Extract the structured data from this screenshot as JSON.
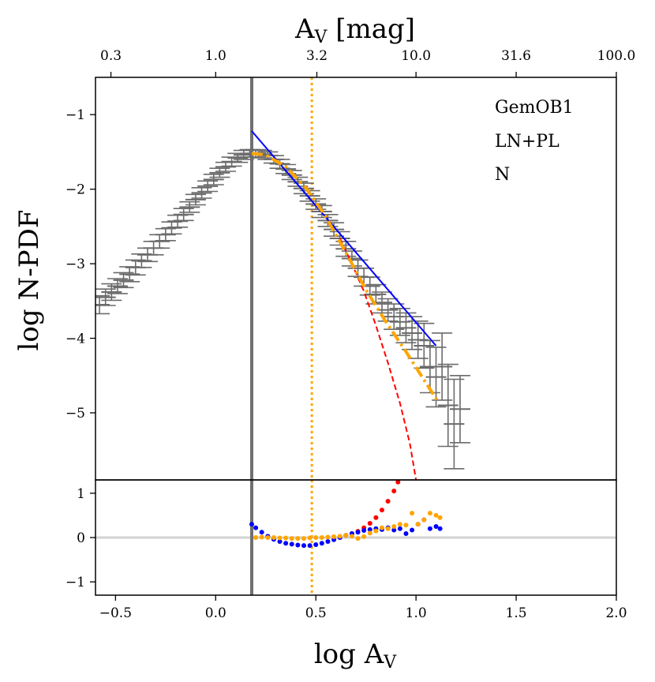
{
  "chart_data": {
    "type": "line",
    "panels": [
      "main",
      "residual"
    ],
    "x_axis": {
      "label_base": "log A",
      "label_sub": "V",
      "range": [
        -0.6,
        2.0
      ],
      "ticks": [
        -0.5,
        0.0,
        0.5,
        1.0,
        1.5,
        2.0
      ],
      "tick_labels": [
        "−0.5",
        "0.0",
        "0.5",
        "1.0",
        "1.5",
        "2.0"
      ]
    },
    "top_axis": {
      "label_base": "A",
      "label_sub": "V",
      "label_suffix": " [mag]",
      "tick_values_log": [
        -0.523,
        0.0,
        0.505,
        1.0,
        1.5,
        2.0
      ],
      "tick_labels": [
        "0.3",
        "1.0",
        "3.2",
        "10.0",
        "31.6",
        "100.0"
      ]
    },
    "y_axis_main": {
      "label": "log N-PDF",
      "range": [
        -5.9,
        -0.5
      ],
      "ticks": [
        -1,
        -2,
        -3,
        -4,
        -5
      ],
      "tick_labels": [
        "−1",
        "−2",
        "−3",
        "−4",
        "−5"
      ]
    },
    "y_axis_residual": {
      "range": [
        -1.3,
        1.3
      ],
      "ticks": [
        1,
        0,
        -1
      ],
      "tick_labels": [
        "1",
        "0",
        "−1"
      ]
    },
    "legend": {
      "position": "top-right",
      "lines": [
        "GemOB1",
        "LN+PL",
        "N"
      ]
    },
    "vertical_lines": [
      {
        "name": "completeness-limit",
        "x": 0.18,
        "color": "#707070",
        "style": "solid"
      },
      {
        "name": "transition-av",
        "x": 0.48,
        "color": "#ffa500",
        "style": "dotted"
      }
    ],
    "series": [
      {
        "name": "N-PDF data",
        "color": "#6b6b6b",
        "style": "errorbar",
        "x": [
          -0.58,
          -0.55,
          -0.52,
          -0.49,
          -0.46,
          -0.43,
          -0.4,
          -0.37,
          -0.34,
          -0.31,
          -0.28,
          -0.25,
          -0.22,
          -0.19,
          -0.16,
          -0.13,
          -0.1,
          -0.07,
          -0.04,
          -0.01,
          0.02,
          0.05,
          0.08,
          0.11,
          0.14,
          0.17,
          0.2,
          0.23,
          0.26,
          0.29,
          0.32,
          0.35,
          0.38,
          0.41,
          0.44,
          0.47,
          0.5,
          0.53,
          0.56,
          0.59,
          0.62,
          0.65,
          0.68,
          0.71,
          0.74,
          0.77,
          0.8,
          0.83,
          0.86,
          0.89,
          0.92,
          0.95,
          0.98,
          1.01,
          1.04,
          1.07,
          1.1,
          1.13,
          1.16,
          1.19,
          1.22
        ],
        "y": [
          -3.55,
          -3.45,
          -3.38,
          -3.3,
          -3.22,
          -3.14,
          -3.05,
          -2.96,
          -2.88,
          -2.79,
          -2.7,
          -2.61,
          -2.52,
          -2.43,
          -2.34,
          -2.24,
          -2.14,
          -2.05,
          -1.96,
          -1.87,
          -1.78,
          -1.7,
          -1.63,
          -1.58,
          -1.54,
          -1.52,
          -1.52,
          -1.53,
          -1.55,
          -1.6,
          -1.66,
          -1.73,
          -1.81,
          -1.9,
          -1.99,
          -2.09,
          -2.2,
          -2.3,
          -2.42,
          -2.54,
          -2.66,
          -2.8,
          -2.93,
          -3.06,
          -3.18,
          -3.3,
          -3.41,
          -3.52,
          -3.62,
          -3.71,
          -3.78,
          -3.86,
          -3.93,
          -4.02,
          -4.1,
          -4.38,
          -4.52,
          -4.38,
          -4.9,
          -5.15,
          -4.95
        ],
        "yerr": [
          0.12,
          0.11,
          0.11,
          0.1,
          0.1,
          0.1,
          0.1,
          0.09,
          0.09,
          0.09,
          0.09,
          0.08,
          0.08,
          0.08,
          0.08,
          0.07,
          0.07,
          0.07,
          0.07,
          0.07,
          0.06,
          0.06,
          0.06,
          0.06,
          0.06,
          0.05,
          0.05,
          0.05,
          0.05,
          0.05,
          0.06,
          0.06,
          0.06,
          0.06,
          0.07,
          0.07,
          0.07,
          0.08,
          0.08,
          0.09,
          0.09,
          0.1,
          0.1,
          0.11,
          0.12,
          0.12,
          0.13,
          0.14,
          0.15,
          0.17,
          0.18,
          0.2,
          0.22,
          0.25,
          0.3,
          0.35,
          0.4,
          0.45,
          0.55,
          0.6,
          0.45
        ]
      },
      {
        "name": "LN fit",
        "color": "#ff0000",
        "style": "dashed",
        "x": [
          0.62,
          0.68,
          0.74,
          0.8,
          0.86,
          0.92,
          0.97,
          1.0
        ],
        "y": [
          -2.66,
          -3.0,
          -3.37,
          -3.83,
          -4.33,
          -4.87,
          -5.42,
          -5.9
        ]
      },
      {
        "name": "PL fit",
        "color": "#0000ff",
        "style": "solid",
        "x": [
          0.18,
          1.1
        ],
        "y": [
          -1.22,
          -4.1
        ]
      },
      {
        "name": "LN+PL fit",
        "color": "#ffa500",
        "style": "dashdot",
        "x": [
          0.18,
          0.25,
          0.35,
          0.45,
          0.55,
          0.65,
          0.75,
          0.85,
          0.95,
          1.05,
          1.11
        ],
        "y": [
          -1.52,
          -1.54,
          -1.7,
          -1.98,
          -2.37,
          -2.85,
          -3.35,
          -3.78,
          -4.18,
          -4.6,
          -4.85
        ]
      }
    ],
    "residual_series": [
      {
        "name": "LN residual",
        "color": "#ff0000",
        "x": [
          0.62,
          0.65,
          0.68,
          0.71,
          0.74,
          0.77,
          0.8,
          0.83,
          0.86,
          0.89,
          0.91
        ],
        "y": [
          0.02,
          0.05,
          0.09,
          0.14,
          0.22,
          0.32,
          0.45,
          0.62,
          0.82,
          1.05,
          1.25
        ]
      },
      {
        "name": "PL residual",
        "color": "#0000ff",
        "x": [
          0.18,
          0.2,
          0.23,
          0.26,
          0.29,
          0.32,
          0.35,
          0.38,
          0.41,
          0.44,
          0.47,
          0.5,
          0.53,
          0.56,
          0.59,
          0.62,
          0.65,
          0.68,
          0.71,
          0.74,
          0.77,
          0.8,
          0.83,
          0.86,
          0.89,
          0.92,
          0.95,
          0.98,
          1.01,
          1.04,
          1.07,
          1.1,
          1.12
        ],
        "y": [
          0.3,
          0.22,
          0.12,
          0.03,
          -0.04,
          -0.09,
          -0.13,
          -0.15,
          -0.17,
          -0.18,
          -0.18,
          -0.16,
          -0.13,
          -0.09,
          -0.05,
          0.0,
          0.05,
          0.09,
          0.12,
          0.16,
          0.18,
          0.2,
          0.18,
          0.22,
          0.17,
          0.2,
          0.09,
          0.17,
          0.3,
          0.4,
          0.2,
          0.25,
          0.2
        ]
      },
      {
        "name": "LN+PL residual",
        "color": "#ffa500",
        "x": [
          0.2,
          0.23,
          0.26,
          0.29,
          0.32,
          0.35,
          0.38,
          0.41,
          0.44,
          0.47,
          0.5,
          0.53,
          0.56,
          0.59,
          0.62,
          0.65,
          0.68,
          0.71,
          0.74,
          0.77,
          0.8,
          0.83,
          0.86,
          0.89,
          0.92,
          0.95,
          0.98,
          1.01,
          1.04,
          1.07,
          1.1,
          1.12
        ],
        "y": [
          0.0,
          0.01,
          0.0,
          0.0,
          -0.01,
          -0.01,
          -0.02,
          -0.02,
          -0.02,
          -0.01,
          0.0,
          0.0,
          0.01,
          0.02,
          0.03,
          0.05,
          0.03,
          -0.02,
          0.02,
          0.1,
          0.15,
          0.22,
          0.2,
          0.25,
          0.3,
          0.28,
          0.55,
          0.3,
          0.4,
          0.55,
          0.5,
          0.45
        ]
      }
    ]
  }
}
